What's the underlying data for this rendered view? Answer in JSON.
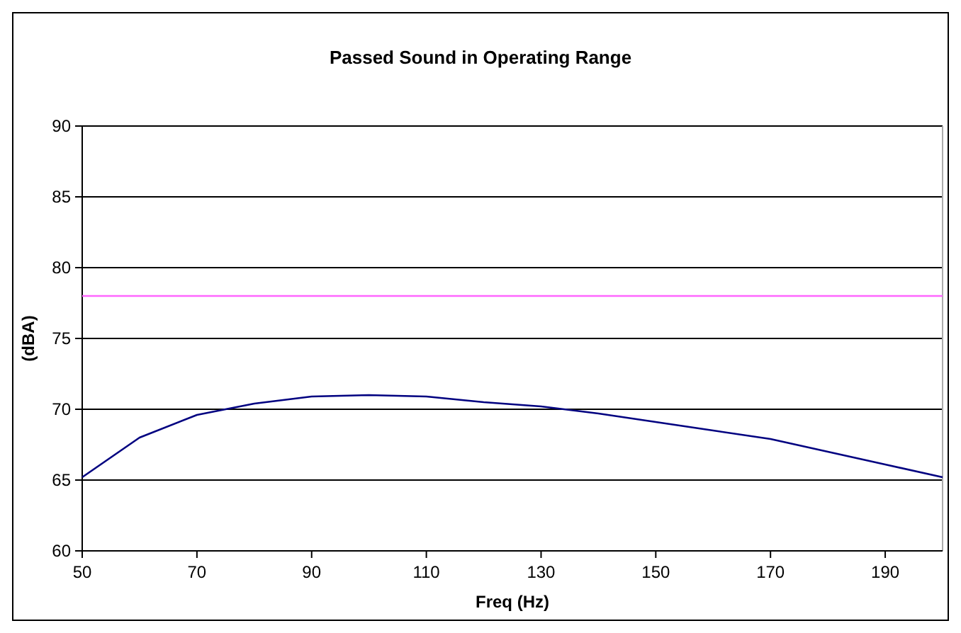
{
  "chart_data": {
    "type": "line",
    "title": "Passed Sound in Operating Range",
    "xlabel": "Freq (Hz)",
    "ylabel": "(dBA)",
    "x": [
      50,
      60,
      70,
      80,
      90,
      100,
      110,
      120,
      130,
      140,
      150,
      160,
      170,
      180,
      190,
      200
    ],
    "series": [
      {
        "color": "#000080",
        "values": [
          65.2,
          68.0,
          69.6,
          70.4,
          70.9,
          71.0,
          70.9,
          70.5,
          70.2,
          69.7,
          69.1,
          68.5,
          67.9,
          67.0,
          66.1,
          65.2
        ]
      }
    ],
    "xlim": [
      50,
      200
    ],
    "xticks": [
      50,
      70,
      90,
      110,
      130,
      150,
      170,
      190
    ],
    "ylim": [
      60,
      90
    ],
    "yticks": [
      60,
      65,
      70,
      75,
      80,
      85,
      90
    ],
    "grid": "y",
    "marker": "none",
    "line_style": "solid",
    "ref_lines": [
      {
        "axis": "y",
        "value": 78,
        "color": "#ff66ff"
      }
    ]
  }
}
